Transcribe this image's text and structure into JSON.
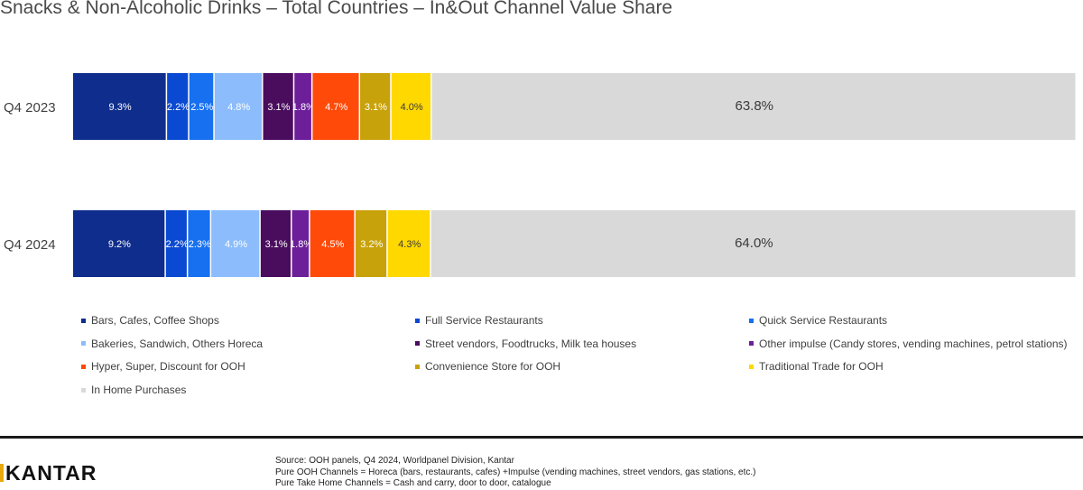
{
  "title": "Snacks & Non-Alcoholic Drinks – Total Countries – In&Out Channel Value Share",
  "chart_data": {
    "type": "bar",
    "orientation": "horizontal",
    "stacked": true,
    "categories": [
      "Q4 2023",
      "Q4 2024"
    ],
    "xlim": [
      0,
      100
    ],
    "series": [
      {
        "name": "Bars, Cafes, Coffee Shops",
        "color": "#0f2d8c",
        "values": [
          9.3,
          9.2
        ],
        "labels": [
          "9.3%",
          "9.2%"
        ],
        "label_color": "#ffffff"
      },
      {
        "name": "Full Service Restaurants",
        "color": "#0a49d1",
        "values": [
          2.2,
          2.2
        ],
        "labels": [
          "2.2%",
          "2.2%"
        ],
        "label_color": "#ffffff"
      },
      {
        "name": "Quick Service Restaurants",
        "color": "#1670f0",
        "values": [
          2.5,
          2.3
        ],
        "labels": [
          "2.5%",
          "2.3%"
        ],
        "label_color": "#ffffff"
      },
      {
        "name": "Bakeries, Sandwich, Others Horeca",
        "color": "#8cbcfb",
        "values": [
          4.8,
          4.9
        ],
        "labels": [
          "4.8%",
          "4.9%"
        ],
        "label_color": "#ffffff"
      },
      {
        "name": "Street vendors, Foodtrucks, Milk tea houses",
        "color": "#4a0d5e",
        "values": [
          3.1,
          3.1
        ],
        "labels": [
          "3.1%",
          "3.1%"
        ],
        "label_color": "#ffffff"
      },
      {
        "name": "Other impulse (Candy stores, vending machines, petrol stations)",
        "color": "#6d1f9a",
        "values": [
          1.8,
          1.8
        ],
        "labels": [
          "1.8%",
          "1.8%"
        ],
        "label_color": "#ffffff"
      },
      {
        "name": "Hyper, Super, Discount for OOH",
        "color": "#ff4a0a",
        "values": [
          4.7,
          4.5
        ],
        "labels": [
          "4.7%",
          "4.5%"
        ],
        "label_color": "#ffffff"
      },
      {
        "name": "Convenience Store for OOH",
        "color": "#c8a20a",
        "values": [
          3.1,
          3.2
        ],
        "labels": [
          "3.1%",
          "3.2%"
        ],
        "label_color": "#ffffff"
      },
      {
        "name": "Traditional Trade for OOH",
        "color": "#ffd800",
        "values": [
          4.0,
          4.3
        ],
        "labels": [
          "4.0%",
          "4.3%"
        ],
        "label_color": "#3a3a3a"
      },
      {
        "name": "In Home Purchases",
        "color": "#d9d9d9",
        "values": [
          63.8,
          64.0
        ],
        "labels": [
          "63.8%",
          "64.0%"
        ],
        "label_color": "#3a3a3a"
      }
    ],
    "legend_position": "bottom",
    "legend_columns": 3
  },
  "logo": {
    "text": "KANTAR"
  },
  "footer": {
    "line1": "Source: OOH panels, Q4 2024, Worldpanel Division, Kantar",
    "line2": "Pure OOH Channels = Horeca (bars, restaurants, cafes) +Impulse (vending machines, street vendors, gas stations, etc.)",
    "line3": "Pure Take Home Channels = Cash and carry, door to door, catalogue"
  }
}
